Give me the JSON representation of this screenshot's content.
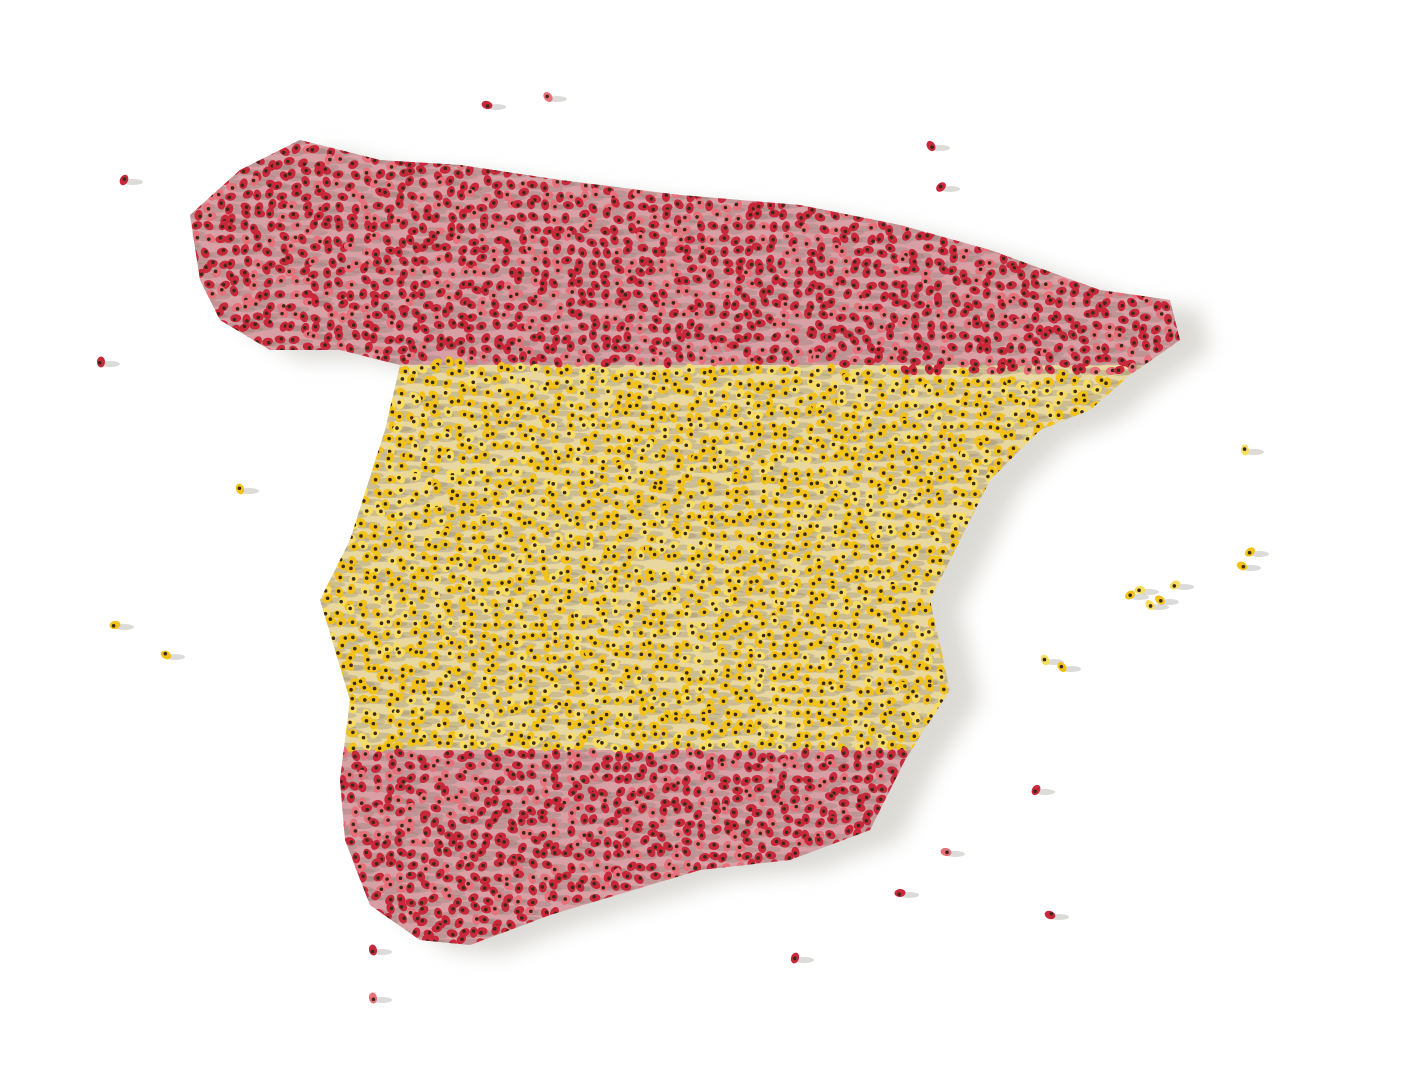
{
  "image": {
    "subject": "crowd-map-spain",
    "colors": {
      "background": "#ffffff",
      "red": "#c8283a",
      "red_light": "#e8707a",
      "yellow": "#f2c21a",
      "yellow_light": "#f8dc60",
      "dark": "#3a2a1a",
      "shadow": "#d8d6d2"
    }
  }
}
